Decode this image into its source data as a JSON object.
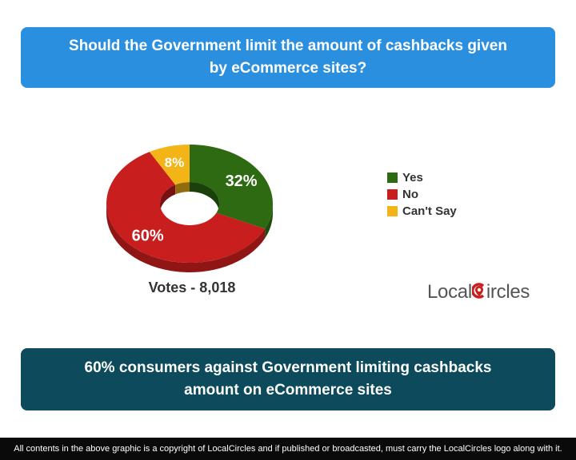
{
  "question": "Should the Government limit the amount of cashbacks given by eCommerce sites?",
  "votes": "Votes - 8,018",
  "answer": "60% consumers against Government limiting cashbacks amount on eCommerce sites",
  "logo": {
    "text_before": "Local",
    "text_after": "ircles"
  },
  "footer": "All contents in the above graphic is a copyright of LocalCircles and if published or broadcasted, must carry the LocalCircles logo along with it.",
  "colors": {
    "yes": "#2d6a12",
    "no": "#c81e1e",
    "cant_say": "#f2b417",
    "question_banner": "#2b8fe0",
    "answer_banner": "#0c4a5c"
  },
  "chart_data": {
    "type": "pie",
    "style": "3d-donut",
    "categories": [
      "Yes",
      "No",
      "Can't Say"
    ],
    "values": [
      32,
      60,
      8
    ],
    "labels": [
      "32%",
      "60%",
      "8%"
    ],
    "legend": "right"
  }
}
